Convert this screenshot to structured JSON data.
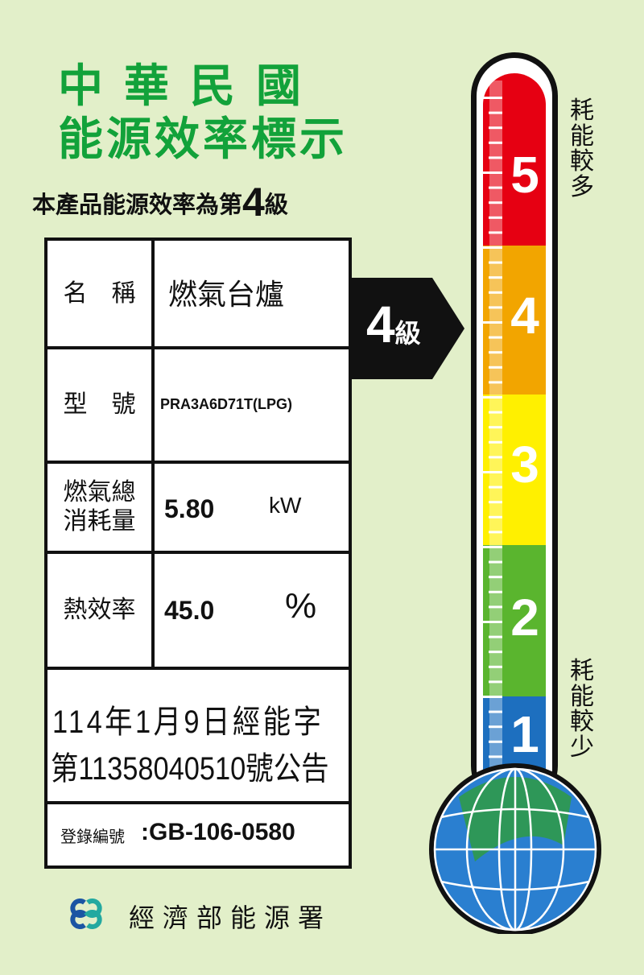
{
  "header": {
    "line1": "中華民國",
    "line2": "能源效率標示",
    "grade_sentence_prefix": "本產品能源效率為第",
    "grade": "4",
    "grade_sentence_suffix": "級"
  },
  "table": {
    "name_label": "名　稱",
    "name_value": "燃氣台爐",
    "model_label": "型　號",
    "model_value": "PRA3A6D71T(LPG)",
    "consumption_label": "燃氣總\n消耗量",
    "consumption_value": "5.80",
    "consumption_unit": "kW",
    "efficiency_label": "熱效率",
    "efficiency_value": "45.0",
    "efficiency_unit": "%",
    "announcement_line1": "114年1月9日經能字",
    "announcement_line2": "第11358040510號公告",
    "registration_label": "登錄編號",
    "registration_value": ":GB-106-0580"
  },
  "indicator": {
    "grade": "4",
    "suffix": "級"
  },
  "scale": {
    "levels": [
      {
        "label": "5",
        "color": "#e60012"
      },
      {
        "label": "4",
        "color": "#f2a500"
      },
      {
        "label": "3",
        "color": "#fff000"
      },
      {
        "label": "2",
        "color": "#5ab52e"
      },
      {
        "label": "1",
        "color": "#1d6fbf"
      }
    ],
    "top_text": "耗能較多",
    "bottom_text": "耗能較少"
  },
  "footer": {
    "agency": "經濟部能源署",
    "logo_colors": [
      "#1b55a3",
      "#23a9a0"
    ]
  }
}
